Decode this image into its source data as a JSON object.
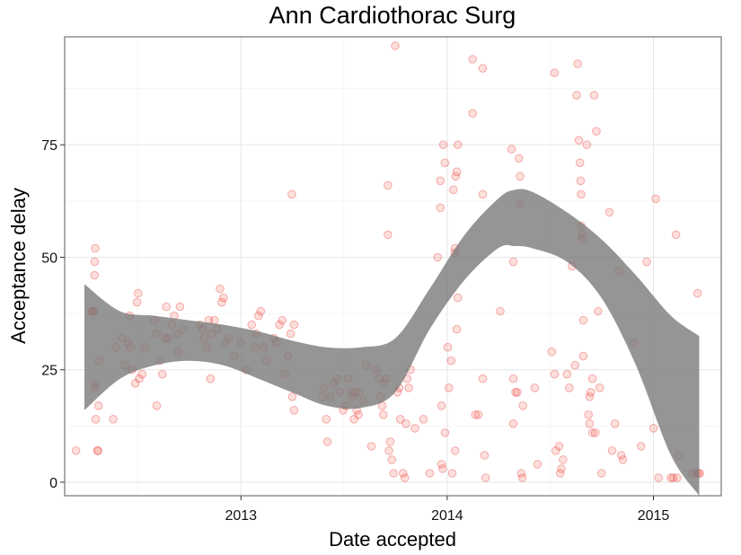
{
  "chart_data": {
    "type": "scatter",
    "title": "Ann Cardiothorac Surg",
    "xlabel": "Date accepted",
    "ylabel": "Acceptance delay",
    "x_ticks": [
      "2013",
      "2014",
      "2015"
    ],
    "y_ticks": [
      0,
      25,
      50,
      75
    ],
    "xlim": [
      "2012-02-24",
      "2015-05-01"
    ],
    "ylim": [
      -3,
      99
    ],
    "grid": true,
    "legend": "none",
    "colors": {
      "points": "#e31a1c",
      "band": "#7a7a7a"
    },
    "points": [
      [
        "2012-03-15",
        7
      ],
      [
        "2012-04-12",
        38
      ],
      [
        "2012-04-14",
        38
      ],
      [
        "2012-04-16",
        38
      ],
      [
        "2012-04-18",
        52
      ],
      [
        "2012-04-17",
        49
      ],
      [
        "2012-04-17",
        46
      ],
      [
        "2012-04-18",
        22
      ],
      [
        "2012-04-18",
        21
      ],
      [
        "2012-04-19",
        14
      ],
      [
        "2012-04-22",
        7
      ],
      [
        "2012-04-23",
        7
      ],
      [
        "2012-04-24",
        17
      ],
      [
        "2012-04-25",
        27
      ],
      [
        "2012-05-25",
        30
      ],
      [
        "2012-06-05",
        32
      ],
      [
        "2012-06-10",
        26
      ],
      [
        "2012-06-15",
        31
      ],
      [
        "2012-06-18",
        37
      ],
      [
        "2012-06-20",
        30
      ],
      [
        "2012-06-22",
        25
      ],
      [
        "2012-06-28",
        22
      ],
      [
        "2012-07-01",
        40
      ],
      [
        "2012-07-03",
        42
      ],
      [
        "2012-07-05",
        23
      ],
      [
        "2012-07-10",
        24
      ],
      [
        "2012-05-20",
        14
      ],
      [
        "2012-07-15",
        30
      ],
      [
        "2012-08-01",
        36
      ],
      [
        "2012-08-05",
        33
      ],
      [
        "2012-08-10",
        27
      ],
      [
        "2012-08-15",
        24
      ],
      [
        "2012-08-05",
        17
      ],
      [
        "2012-08-20",
        32
      ],
      [
        "2012-08-25",
        32
      ],
      [
        "2012-08-22",
        39
      ],
      [
        "2012-09-01",
        35
      ],
      [
        "2012-09-05",
        37
      ],
      [
        "2012-09-10",
        33
      ],
      [
        "2012-09-12",
        29
      ],
      [
        "2012-09-15",
        39
      ],
      [
        "2012-09-20",
        34
      ],
      [
        "2012-10-20",
        35
      ],
      [
        "2012-10-25",
        34
      ],
      [
        "2012-10-28",
        32
      ],
      [
        "2012-11-01",
        30
      ],
      [
        "2012-11-05",
        36
      ],
      [
        "2012-11-08",
        23
      ],
      [
        "2012-11-10",
        33
      ],
      [
        "2012-11-15",
        36
      ],
      [
        "2012-11-20",
        34
      ],
      [
        "2012-11-25",
        43
      ],
      [
        "2012-11-28",
        40
      ],
      [
        "2012-12-01",
        41
      ],
      [
        "2012-12-05",
        31
      ],
      [
        "2012-12-10",
        32
      ],
      [
        "2012-12-20",
        28
      ],
      [
        "2013-01-01",
        31
      ],
      [
        "2013-01-10",
        25
      ],
      [
        "2013-01-20",
        35
      ],
      [
        "2013-01-25",
        30
      ],
      [
        "2013-01-28",
        33
      ],
      [
        "2013-02-01",
        37
      ],
      [
        "2013-02-05",
        38
      ],
      [
        "2013-02-10",
        30
      ],
      [
        "2013-02-15",
        27
      ],
      [
        "2013-02-28",
        32
      ],
      [
        "2013-03-05",
        31
      ],
      [
        "2013-03-10",
        35
      ],
      [
        "2013-03-15",
        36
      ],
      [
        "2013-03-20",
        24
      ],
      [
        "2013-03-25",
        28
      ],
      [
        "2013-03-30",
        33
      ],
      [
        "2013-04-05",
        16
      ],
      [
        "2013-04-02",
        19
      ],
      [
        "2013-04-01",
        64
      ],
      [
        "2013-04-05",
        35
      ],
      [
        "2013-05-25",
        19
      ],
      [
        "2013-05-28",
        21
      ],
      [
        "2013-06-01",
        14
      ],
      [
        "2013-06-03",
        9
      ],
      [
        "2013-06-08",
        19
      ],
      [
        "2013-06-15",
        22
      ],
      [
        "2013-06-20",
        23
      ],
      [
        "2013-06-25",
        20
      ],
      [
        "2013-07-01",
        16
      ],
      [
        "2013-07-05",
        17
      ],
      [
        "2013-07-10",
        23
      ],
      [
        "2013-07-15",
        20
      ],
      [
        "2013-07-20",
        14
      ],
      [
        "2013-07-18",
        19
      ],
      [
        "2013-07-22",
        20
      ],
      [
        "2013-07-25",
        16
      ],
      [
        "2013-07-28",
        15
      ],
      [
        "2013-07-30",
        20
      ],
      [
        "2013-08-05",
        18
      ],
      [
        "2013-08-10",
        26
      ],
      [
        "2013-08-20",
        8
      ],
      [
        "2013-08-28",
        25
      ],
      [
        "2013-09-02",
        23
      ],
      [
        "2013-09-05",
        19
      ],
      [
        "2013-09-08",
        17
      ],
      [
        "2013-09-10",
        15
      ],
      [
        "2013-09-12",
        22
      ],
      [
        "2013-09-15",
        23
      ],
      [
        "2013-09-18",
        66
      ],
      [
        "2013-09-18",
        55
      ],
      [
        "2013-09-20",
        7
      ],
      [
        "2013-09-22",
        9
      ],
      [
        "2013-09-25",
        5
      ],
      [
        "2013-09-28",
        2
      ],
      [
        "2013-10-01",
        97
      ],
      [
        "2013-10-05",
        20
      ],
      [
        "2013-10-08",
        21
      ],
      [
        "2013-10-10",
        14
      ],
      [
        "2013-10-15",
        2
      ],
      [
        "2013-10-18",
        1
      ],
      [
        "2013-10-20",
        13
      ],
      [
        "2013-10-22",
        23
      ],
      [
        "2013-10-25",
        21
      ],
      [
        "2013-10-28",
        25
      ],
      [
        "2013-11-05",
        12
      ],
      [
        "2013-11-20",
        14
      ],
      [
        "2013-12-01",
        2
      ],
      [
        "2013-12-15",
        50
      ],
      [
        "2013-12-25",
        75
      ],
      [
        "2013-12-28",
        71
      ],
      [
        "2013-12-20",
        67
      ],
      [
        "2013-12-20",
        61
      ],
      [
        "2013-12-22",
        17
      ],
      [
        "2013-12-22",
        4
      ],
      [
        "2013-12-24",
        3
      ],
      [
        "2013-12-28",
        11
      ],
      [
        "2014-01-02",
        30
      ],
      [
        "2014-01-04",
        21
      ],
      [
        "2014-01-08",
        27
      ],
      [
        "2014-01-12",
        65
      ],
      [
        "2014-01-14",
        51
      ],
      [
        "2014-01-15",
        52
      ],
      [
        "2014-01-16",
        68
      ],
      [
        "2014-01-18",
        69
      ],
      [
        "2014-01-20",
        75
      ],
      [
        "2014-01-18",
        34
      ],
      [
        "2014-01-20",
        41
      ],
      [
        "2014-01-15",
        7
      ],
      [
        "2014-01-10",
        2
      ],
      [
        "2014-02-15",
        94
      ],
      [
        "2014-02-15",
        82
      ],
      [
        "2014-02-20",
        15
      ],
      [
        "2014-02-25",
        15
      ],
      [
        "2014-03-05",
        92
      ],
      [
        "2014-03-05",
        23
      ],
      [
        "2014-03-05",
        64
      ],
      [
        "2014-03-08",
        6
      ],
      [
        "2014-03-10",
        1
      ],
      [
        "2014-04-05",
        38
      ],
      [
        "2014-04-25",
        74
      ],
      [
        "2014-04-28",
        49
      ],
      [
        "2014-04-28",
        23
      ],
      [
        "2014-04-28",
        13
      ],
      [
        "2014-05-02",
        20
      ],
      [
        "2014-05-05",
        20
      ],
      [
        "2014-05-08",
        72
      ],
      [
        "2014-05-10",
        68
      ],
      [
        "2014-05-10",
        62
      ],
      [
        "2014-05-12",
        2
      ],
      [
        "2014-05-14",
        1
      ],
      [
        "2014-05-15",
        17
      ],
      [
        "2014-06-05",
        21
      ],
      [
        "2014-06-10",
        4
      ],
      [
        "2014-07-10",
        91
      ],
      [
        "2014-07-05",
        29
      ],
      [
        "2014-07-10",
        24
      ],
      [
        "2014-07-12",
        7
      ],
      [
        "2014-07-18",
        8
      ],
      [
        "2014-07-20",
        2
      ],
      [
        "2014-07-22",
        3
      ],
      [
        "2014-07-25",
        5
      ],
      [
        "2014-08-01",
        24
      ],
      [
        "2014-08-05",
        21
      ],
      [
        "2014-08-10",
        48
      ],
      [
        "2014-08-15",
        26
      ],
      [
        "2014-08-18",
        86
      ],
      [
        "2014-08-20",
        93
      ],
      [
        "2014-08-22",
        76
      ],
      [
        "2014-08-24",
        71
      ],
      [
        "2014-08-25",
        67
      ],
      [
        "2014-08-26",
        64
      ],
      [
        "2014-08-26",
        57
      ],
      [
        "2014-08-28",
        55
      ],
      [
        "2014-08-28",
        54
      ],
      [
        "2014-08-30",
        36
      ],
      [
        "2014-08-30",
        28
      ],
      [
        "2014-09-05",
        75
      ],
      [
        "2014-09-08",
        15
      ],
      [
        "2014-09-10",
        13
      ],
      [
        "2014-09-10",
        19
      ],
      [
        "2014-09-12",
        20
      ],
      [
        "2014-09-15",
        23
      ],
      [
        "2014-09-15",
        11
      ],
      [
        "2014-09-18",
        86
      ],
      [
        "2014-09-20",
        11
      ],
      [
        "2014-09-22",
        78
      ],
      [
        "2014-09-25",
        38
      ],
      [
        "2014-09-28",
        21
      ],
      [
        "2014-10-01",
        2
      ],
      [
        "2014-10-15",
        60
      ],
      [
        "2014-10-20",
        7
      ],
      [
        "2014-10-25",
        13
      ],
      [
        "2014-11-01",
        47
      ],
      [
        "2014-11-05",
        6
      ],
      [
        "2014-11-08",
        5
      ],
      [
        "2014-11-28",
        31
      ],
      [
        "2014-12-10",
        8
      ],
      [
        "2014-12-20",
        49
      ],
      [
        "2015-01-01",
        12
      ],
      [
        "2015-01-05",
        63
      ],
      [
        "2015-01-10",
        1
      ],
      [
        "2015-02-01",
        1
      ],
      [
        "2015-02-05",
        1
      ],
      [
        "2015-02-10",
        55
      ],
      [
        "2015-02-12",
        1
      ],
      [
        "2015-02-15",
        6
      ],
      [
        "2015-03-10",
        2
      ],
      [
        "2015-03-18",
        2
      ],
      [
        "2015-03-20",
        42
      ],
      [
        "2015-03-22",
        2
      ],
      [
        "2015-03-24",
        2
      ]
    ],
    "smooth_band": {
      "x": [
        "2012-03-30",
        "2012-06-01",
        "2012-08-01",
        "2012-10-01",
        "2012-12-01",
        "2013-02-01",
        "2013-04-01",
        "2013-06-01",
        "2013-08-01",
        "2013-10-01",
        "2013-12-01",
        "2014-02-01",
        "2014-04-01",
        "2014-05-01",
        "2014-06-01",
        "2014-08-01",
        "2014-10-01",
        "2014-12-01",
        "2015-02-01",
        "2015-03-23"
      ],
      "lower": [
        16,
        23,
        26,
        27,
        26,
        23,
        20,
        17,
        16.5,
        20,
        34,
        45,
        52,
        52.5,
        52,
        49,
        41,
        26,
        6,
        -3
      ],
      "upper": [
        44,
        38,
        37,
        36,
        35,
        33.5,
        31.5,
        30,
        30,
        32,
        43,
        55,
        63,
        65,
        64.5,
        60,
        54,
        46,
        37,
        32.5
      ]
    }
  }
}
